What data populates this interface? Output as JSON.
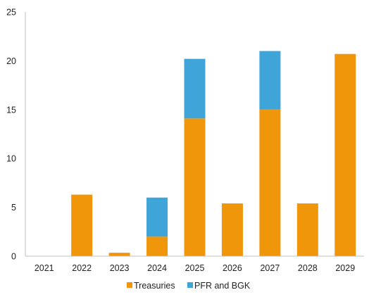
{
  "chart_data": {
    "type": "bar",
    "stacked": true,
    "categories": [
      "2021",
      "2022",
      "2023",
      "2024",
      "2025",
      "2026",
      "2027",
      "2028",
      "2029"
    ],
    "series": [
      {
        "name": "Treasuries",
        "color": "#f0960a",
        "values": [
          0,
          6.3,
          0.35,
          2.0,
          14.1,
          5.4,
          15.0,
          5.4,
          20.7
        ]
      },
      {
        "name": "PFR and BGK",
        "color": "#3fa4d8",
        "values": [
          0,
          0,
          0,
          4.0,
          6.1,
          0,
          6.0,
          0,
          0
        ]
      }
    ],
    "ylim": [
      0,
      25
    ],
    "yticks": [
      0,
      5,
      10,
      15,
      20,
      25
    ],
    "grid": false,
    "legend": "bottom"
  }
}
